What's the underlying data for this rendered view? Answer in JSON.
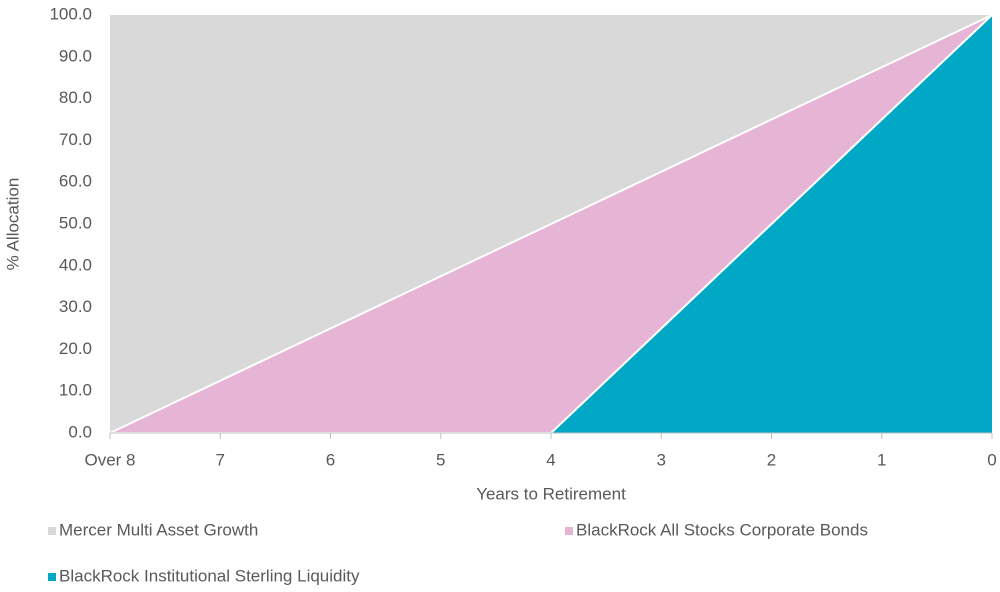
{
  "chart_data": {
    "type": "stacked_area",
    "x_label": "Years to Retirement",
    "y_label": "% Allocation",
    "categories": [
      "Over 8",
      "7",
      "6",
      "5",
      "4",
      "3",
      "2",
      "1",
      "0"
    ],
    "series": [
      {
        "name": "Mercer Multi Asset Growth",
        "color": "#d9d9d9",
        "values": [
          100,
          87.5,
          75,
          62.5,
          50,
          37.5,
          25,
          12.5,
          0
        ]
      },
      {
        "name": "BlackRock All Stocks Corporate Bonds",
        "color": "#e6b5d6",
        "values": [
          0,
          12.5,
          25,
          37.5,
          50,
          37.5,
          25,
          12.5,
          0
        ]
      },
      {
        "name": "BlackRock Institutional Sterling Liquidity",
        "color": "#00a8c6",
        "values": [
          0,
          0,
          0,
          0,
          0,
          25,
          50,
          75,
          100
        ]
      }
    ],
    "ylim": [
      0,
      100
    ],
    "yticks": [
      {
        "value": 0,
        "label": "0.0"
      },
      {
        "value": 10,
        "label": "10.0"
      },
      {
        "value": 20,
        "label": "20.0"
      },
      {
        "value": 30,
        "label": "30.0"
      },
      {
        "value": 40,
        "label": "40.0"
      },
      {
        "value": 50,
        "label": "50.0"
      },
      {
        "value": 60,
        "label": "60.0"
      },
      {
        "value": 70,
        "label": "70.0"
      },
      {
        "value": 80,
        "label": "80.0"
      },
      {
        "value": 90,
        "label": "90.0"
      },
      {
        "value": 100,
        "label": "100.0"
      }
    ],
    "legend": "bottom"
  }
}
